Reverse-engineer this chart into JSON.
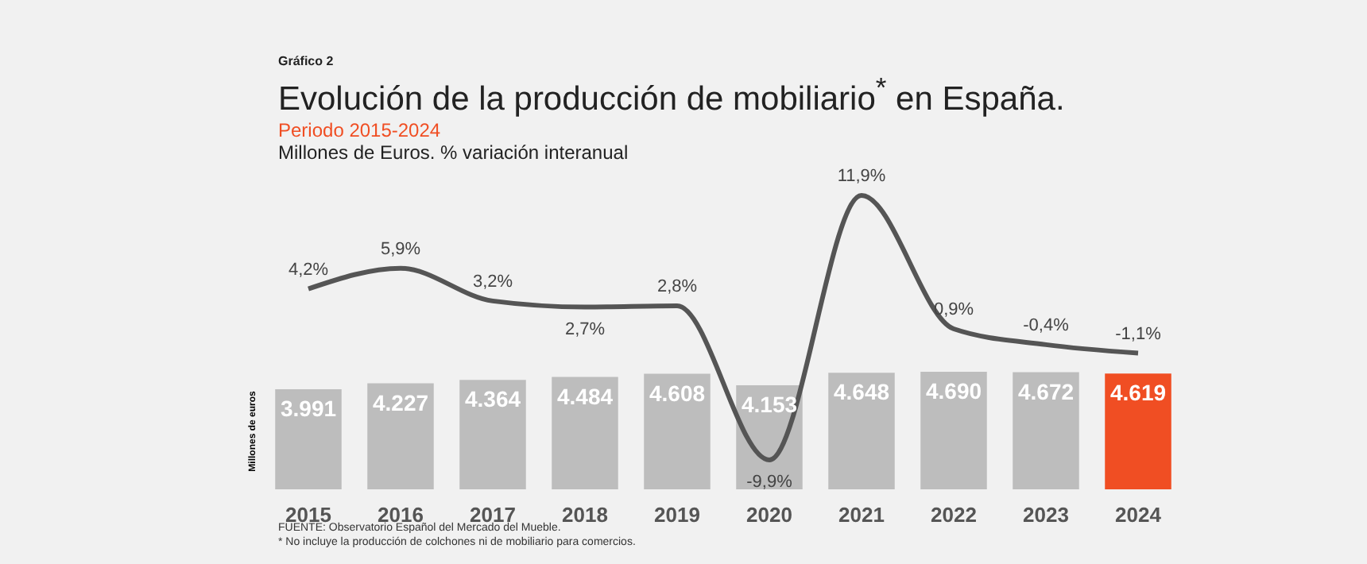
{
  "chart_data": {
    "type": "bar",
    "title": "Evolución de la producción de mobiliario$^{*}$ en España.",
    "subtitle": "Periodo 2015-2024",
    "ylabel": "Millones de euros",
    "annotations": [
      "Gráfico 2",
      "Millones de Euros. % variación interanual",
      "FUENTE: Observatorio Español del Mercado del Mueble.",
      "* No incluye la producción de colchones ni de mobiliario para comercios."
    ],
    "categories": [
      "2015",
      "2016",
      "2017",
      "2018",
      "2019",
      "2020",
      "2021",
      "2022",
      "2023",
      "2024"
    ],
    "tick_labels": "x",
    "marker": "none",
    "series": [
      {
        "type": "bar",
        "colors": [
          "#bdbdbd",
          "#bdbdbd",
          "#bdbdbd",
          "#bdbdbd",
          "#bdbdbd",
          "#bdbdbd",
          "#bdbdbd",
          "#bdbdbd",
          "#bdbdbd",
          "#f04e23"
        ],
        "values": [
          3991,
          4227,
          4364,
          4484,
          4608,
          4153,
          4648,
          4690,
          4672,
          4619
        ],
        "value_labels": [
          "3.991",
          "4.227",
          "4.364",
          "4.484",
          "4.608",
          "4.153",
          "4.648",
          "4.690",
          "4.672",
          "4.619"
        ]
      },
      {
        "type": "line",
        "axis": "y2",
        "color": "#555555",
        "values": [
          4.2,
          5.9,
          3.2,
          2.7,
          2.8,
          -9.9,
          11.9,
          0.9,
          -0.4,
          -1.1
        ],
        "value_labels": [
          "4,2%",
          "5,9%",
          "3,2%",
          "2,7%",
          "2,8%",
          "-9,9%",
          "11,9%",
          "0,9%",
          "-0,4%",
          "-1,1%"
        ]
      }
    ]
  }
}
